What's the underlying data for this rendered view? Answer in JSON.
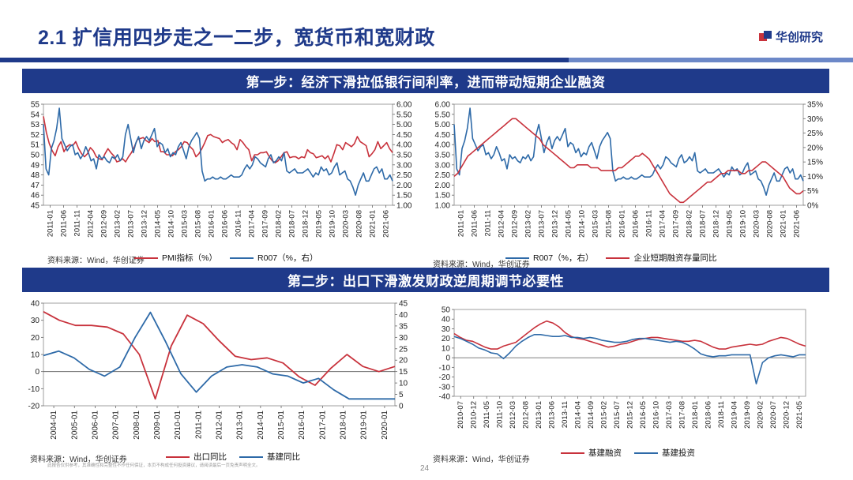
{
  "page": {
    "title": "2.1 扩信用四步走之一二步，宽货币和宽财政",
    "logo": "华创研究",
    "step1": "第一步：经济下滑拉低银行间利率，进而带动短期企业融资",
    "step2": "第二步：出口下滑激发财政逆周期调节必要性",
    "source": "资料来源：Wind，华创证券",
    "footnote": "此报告仅供参考，其准确性和完整性不作任何保证，本页不构成任何投资建议，请阅读最后一页免责声明全文。",
    "page_number": "24",
    "colors": {
      "navy": "#1f3a8a",
      "red": "#c8323c",
      "blue": "#2e6aa8"
    }
  },
  "chart_data": [
    {
      "id": "c1",
      "type": "line",
      "x_ticks": [
        "2011-01",
        "2011-06",
        "2011-11",
        "2012-04",
        "2012-09",
        "2013-02",
        "2013-07",
        "2013-12",
        "2014-05",
        "2014-10",
        "2015-03",
        "2015-08",
        "2016-01",
        "2016-06",
        "2016-11",
        "2017-04",
        "2017-09",
        "2018-02",
        "2018-07",
        "2018-12",
        "2019-05",
        "2019-10",
        "2020-03",
        "2020-08",
        "2021-01",
        "2021-06"
      ],
      "y_left": {
        "min": 45,
        "max": 55,
        "ticks": [
          "45",
          "46",
          "47",
          "48",
          "49",
          "50",
          "51",
          "52",
          "53",
          "54",
          "55"
        ]
      },
      "y_right": {
        "min": 1.0,
        "max": 6.0,
        "ticks": [
          "1.00",
          "1.50",
          "2.00",
          "2.50",
          "3.00",
          "3.50",
          "4.00",
          "4.50",
          "5.00",
          "5.50",
          "6.00"
        ]
      },
      "series": [
        {
          "name": "PMI指标（%）",
          "axis": "left",
          "color": "#c8323c",
          "values": [
            53.8,
            52.2,
            51.1,
            50.4,
            49.9,
            50.8,
            51.3,
            50.3,
            50.8,
            51.0,
            50.9,
            51.3,
            50.6,
            50.1,
            49.8,
            50.1,
            50.7,
            50.4,
            49.8,
            49.6,
            49.5,
            50.1,
            50.6,
            50.2,
            49.9,
            49.3,
            49.4,
            49.6,
            49.3,
            49.8,
            50.2,
            50.8,
            51.5,
            51.6,
            51.7,
            51.4,
            51.2,
            51.6,
            51.3,
            51.4,
            50.3,
            50.3,
            50.0,
            50.0,
            49.9,
            50.3,
            50.5,
            50.8,
            51.3,
            51.2,
            50.8,
            50.5,
            49.8,
            50.1,
            50.6,
            51.2,
            51.9,
            52.0,
            51.8,
            51.7,
            51.6,
            51.2,
            51.4,
            51.5,
            51.2,
            51.0,
            50.5,
            51.5,
            51.2,
            50.8,
            50.5,
            49.4,
            50.0,
            50.0,
            50.2,
            50.2,
            50.3,
            49.8,
            49.4,
            49.2,
            49.4,
            49.8,
            50.2,
            50.3,
            49.7,
            49.8,
            49.8,
            49.6,
            49.8,
            49.7,
            50.5,
            50.2,
            50.1,
            49.7,
            49.8,
            49.9,
            49.6,
            49.9,
            49.3,
            50.1,
            51.0,
            50.9,
            50.5,
            51.2,
            51.0,
            50.8,
            51.1,
            51.8,
            51.3,
            51.1,
            50.9,
            49.8,
            50.1,
            50.5,
            51.3,
            50.6,
            50.9,
            51.2,
            50.6,
            50.2
          ],
          "right_values": null
        },
        {
          "name": "R007（%，右）",
          "axis": "right",
          "color": "#2e6aa8",
          "values": [
            5.0,
            2.8,
            2.5,
            3.8,
            4.2,
            4.8,
            5.8,
            4.3,
            4.0,
            3.7,
            3.9,
            4.0,
            3.5,
            3.6,
            3.3,
            3.5,
            3.9,
            3.6,
            3.2,
            3.3,
            2.8,
            3.5,
            3.3,
            3.4,
            3.2,
            3.1,
            3.4,
            3.3,
            3.5,
            3.2,
            3.4,
            4.5,
            5.0,
            4.3,
            3.6,
            4.1,
            4.4,
            3.8,
            4.2,
            4.4,
            4.2,
            4.5,
            4.8,
            3.9,
            4.1,
            4.0,
            3.6,
            3.8,
            3.4,
            3.6,
            3.5,
            3.9,
            4.1,
            3.7,
            3.3,
            3.9,
            4.2,
            4.4,
            4.6,
            4.3,
            2.7,
            2.2,
            2.3,
            2.3,
            2.4,
            2.3,
            2.3,
            2.4,
            2.3,
            2.3,
            2.4,
            2.5,
            2.4,
            2.4,
            2.4,
            2.5,
            2.8,
            3.0,
            2.8,
            3.0,
            3.4,
            3.3,
            3.1,
            3.0,
            2.9,
            3.3,
            3.5,
            3.1,
            3.2,
            3.4,
            3.2,
            3.6,
            2.7,
            2.6,
            2.7,
            2.8,
            2.6,
            2.6,
            2.6,
            2.7,
            2.8,
            2.6,
            2.4,
            2.6,
            2.5,
            2.9,
            2.7,
            2.8,
            2.5,
            2.6,
            2.9,
            3.1,
            2.5,
            2.6,
            2.7,
            2.3,
            2.2,
            1.9,
            1.5,
            2.0,
            2.3,
            2.6,
            2.2,
            2.2,
            2.5,
            2.8,
            2.9,
            2.6,
            2.8,
            2.3,
            2.3,
            2.5,
            2.2
          ]
        }
      ],
      "legend": [
        "PMI指标（%）",
        "R007（%，右）"
      ],
      "source": "资料来源：Wind，华创证券"
    },
    {
      "id": "c2",
      "type": "line",
      "x_ticks": [
        "2011-01",
        "2011-06",
        "2011-11",
        "2012-04",
        "2012-09",
        "2013-02",
        "2013-07",
        "2013-12",
        "2014-05",
        "2014-10",
        "2015-03",
        "2015-08",
        "2016-01",
        "2016-06",
        "2016-11",
        "2017-04",
        "2017-09",
        "2018-02",
        "2018-07",
        "2018-12",
        "2019-05",
        "2019-10",
        "2020-03",
        "2020-08",
        "2021-01",
        "2021-06"
      ],
      "y_left": {
        "min": 1.0,
        "max": 6.0,
        "ticks": [
          "1.00",
          "1.50",
          "2.00",
          "2.50",
          "3.00",
          "3.50",
          "4.00",
          "4.50",
          "5.00",
          "5.50",
          "6.00"
        ]
      },
      "y_right": {
        "min": 0,
        "max": 35,
        "ticks": [
          "0%",
          "5%",
          "10%",
          "15%",
          "20%",
          "25%",
          "30%",
          "35%"
        ]
      },
      "series": [
        {
          "name": "R007（%，右）",
          "axis": "left",
          "color": "#2e6aa8",
          "values": [
            5.0,
            2.8,
            2.5,
            3.8,
            4.2,
            4.8,
            5.8,
            4.3,
            4.0,
            3.7,
            3.9,
            4.0,
            3.5,
            3.6,
            3.3,
            3.5,
            3.9,
            3.6,
            3.2,
            3.3,
            2.8,
            3.5,
            3.3,
            3.4,
            3.2,
            3.1,
            3.4,
            3.3,
            3.5,
            3.2,
            3.4,
            4.5,
            5.0,
            4.3,
            3.6,
            4.1,
            4.4,
            3.8,
            4.2,
            4.4,
            4.2,
            4.5,
            4.8,
            3.9,
            4.1,
            4.0,
            3.6,
            3.8,
            3.4,
            3.6,
            3.5,
            3.9,
            4.1,
            3.7,
            3.3,
            3.9,
            4.2,
            4.4,
            4.6,
            4.3,
            2.7,
            2.2,
            2.3,
            2.3,
            2.4,
            2.3,
            2.3,
            2.4,
            2.3,
            2.3,
            2.4,
            2.5,
            2.4,
            2.4,
            2.4,
            2.5,
            2.8,
            3.0,
            2.8,
            3.0,
            3.4,
            3.3,
            3.1,
            3.0,
            2.9,
            3.3,
            3.5,
            3.1,
            3.2,
            3.4,
            3.2,
            3.6,
            2.7,
            2.6,
            2.7,
            2.8,
            2.6,
            2.6,
            2.6,
            2.7,
            2.8,
            2.6,
            2.4,
            2.6,
            2.5,
            2.9,
            2.7,
            2.8,
            2.5,
            2.6,
            2.9,
            3.1,
            2.5,
            2.6,
            2.7,
            2.3,
            2.2,
            1.9,
            1.5,
            2.0,
            2.3,
            2.6,
            2.2,
            2.2,
            2.5,
            2.8,
            2.9,
            2.6,
            2.8,
            2.3,
            2.3,
            2.5,
            2.2
          ]
        },
        {
          "name": "企业短期融资存量同比",
          "axis": "right",
          "color": "#c8323c",
          "values": [
            10,
            11,
            13,
            15,
            17,
            18,
            19,
            20,
            21,
            22,
            23,
            24,
            25,
            26,
            27,
            28,
            29,
            30,
            30,
            29,
            28,
            27,
            26,
            25,
            24,
            23,
            21,
            20,
            19,
            18,
            17,
            16,
            15,
            14,
            13,
            13,
            14,
            14,
            14,
            14,
            13,
            13,
            13,
            12,
            12,
            12,
            12,
            12,
            13,
            13,
            14,
            15,
            16,
            17,
            17,
            18,
            17,
            16,
            14,
            12,
            10,
            8,
            6,
            4,
            3,
            2,
            1,
            1,
            2,
            3,
            4,
            5,
            6,
            7,
            8,
            8,
            9,
            10,
            11,
            11,
            12,
            12,
            12,
            12,
            11,
            11,
            12,
            12,
            13,
            14,
            15,
            15,
            14,
            13,
            12,
            11,
            10,
            8,
            6,
            5,
            4,
            4,
            5
          ]
        }
      ],
      "legend": [
        "R007（%，右）",
        "企业短期融资存量同比"
      ],
      "source": "资料来源：Wind，华创证券"
    },
    {
      "id": "c3",
      "type": "line",
      "x_ticks": [
        "2004-01",
        "2005-01",
        "2006-01",
        "2007-01",
        "2008-01",
        "2009-01",
        "2010-01",
        "2011-01",
        "2012-01",
        "2013-01",
        "2014-01",
        "2015-01",
        "2016-01",
        "2017-01",
        "2018-01",
        "2019-01",
        "2020-01"
      ],
      "y_left": {
        "min": -20,
        "max": 40,
        "ticks": [
          "-20",
          "-10",
          "0",
          "10",
          "20",
          "30",
          "40"
        ]
      },
      "y_right": {
        "min": 0,
        "max": 45,
        "ticks": [
          "0",
          "5",
          "10",
          "15",
          "20",
          "25",
          "30",
          "35",
          "40",
          "45"
        ]
      },
      "series": [
        {
          "name": "出口同比",
          "axis": "left",
          "color": "#c8323c",
          "values": [
            35,
            30,
            27,
            27,
            26,
            22,
            10,
            -16,
            15,
            33,
            28,
            18,
            9,
            7,
            8,
            5,
            -3,
            -8,
            2,
            10,
            3,
            0,
            3
          ]
        },
        {
          "name": "基建同比",
          "axis": "right",
          "color": "#2e6aa8",
          "values": [
            22,
            24,
            21,
            16,
            13,
            17,
            30,
            41,
            28,
            14,
            6,
            13,
            17,
            18,
            17,
            14,
            13,
            10,
            12,
            7,
            3,
            3,
            3,
            3
          ]
        }
      ],
      "legend": [
        "出口同比",
        "基建同比"
      ],
      "source": "资料来源：Wind，华创证券"
    },
    {
      "id": "c4",
      "type": "line",
      "x_ticks": [
        "2010-07",
        "2010-12",
        "2011-05",
        "2011-10",
        "2012-03",
        "2012-08",
        "2013-01",
        "2013-06",
        "2013-11",
        "2014-04",
        "2014-09",
        "2015-02",
        "2015-07",
        "2015-12",
        "2016-05",
        "2016-10",
        "2017-03",
        "2017-08",
        "2018-01",
        "2018-06",
        "2018-11",
        "2019-04",
        "2019-09",
        "2020-02",
        "2020-07",
        "2020-12",
        "2021-05"
      ],
      "y_left": {
        "min": -40,
        "max": 50,
        "ticks": [
          "-40",
          "-30",
          "-20",
          "-10",
          "0",
          "10",
          "20",
          "30",
          "40",
          "50"
        ]
      },
      "series": [
        {
          "name": "基建融资",
          "color": "#c8323c",
          "values": [
            25,
            21,
            18,
            17,
            14,
            11,
            9,
            9,
            12,
            14,
            16,
            21,
            26,
            31,
            35,
            38,
            36,
            32,
            26,
            22,
            20,
            19,
            17,
            15,
            13,
            11,
            12,
            14,
            15,
            17,
            19,
            20,
            21,
            21,
            20,
            19,
            18,
            17,
            17,
            18,
            17,
            14,
            11,
            9,
            9,
            11,
            12,
            13,
            14,
            13,
            14,
            17,
            19,
            21,
            20,
            17,
            14,
            12
          ]
        },
        {
          "name": "基建投资",
          "color": "#2e6aa8",
          "values": [
            22,
            20,
            17,
            14,
            10,
            8,
            5,
            4,
            -1,
            5,
            12,
            17,
            21,
            24,
            24,
            23,
            22,
            22,
            23,
            21,
            21,
            20,
            21,
            20,
            18,
            17,
            16,
            16,
            17,
            19,
            20,
            20,
            19,
            18,
            17,
            16,
            17,
            16,
            13,
            9,
            4,
            2,
            1,
            2,
            2,
            3,
            3,
            3,
            3,
            -27,
            -5,
            0,
            2,
            3,
            2,
            1,
            3,
            3
          ]
        }
      ],
      "legend": [
        "基建融资",
        "基建投资"
      ],
      "source": "资料来源：Wind，华创证券"
    }
  ]
}
